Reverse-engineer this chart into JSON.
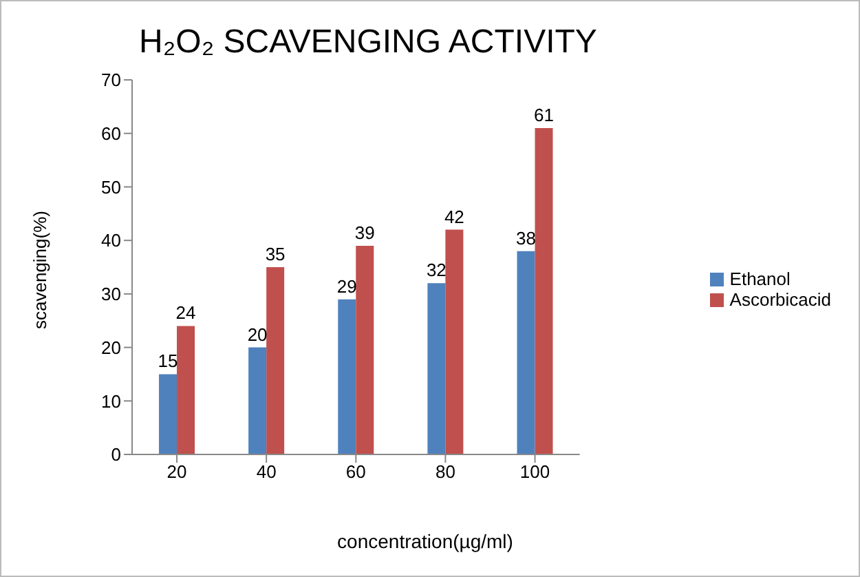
{
  "chart_data": {
    "type": "bar",
    "title": "H₂O₂ SCAVENGING ACTIVITY",
    "xlabel": "concentration(µg/ml)",
    "ylabel": "scavenging(%)",
    "categories": [
      "20",
      "40",
      "60",
      "80",
      "100"
    ],
    "series": [
      {
        "name": "Ethanol",
        "color": "#4f81bd",
        "values": [
          15,
          20,
          29,
          32,
          38
        ]
      },
      {
        "name": "Ascorbicacid",
        "color": "#c0504d",
        "values": [
          24,
          35,
          39,
          42,
          61
        ]
      }
    ],
    "ylim": [
      0,
      70
    ],
    "yticks": [
      0,
      10,
      20,
      30,
      40,
      50,
      60,
      70
    ],
    "data_labels": true,
    "legend": "right"
  }
}
